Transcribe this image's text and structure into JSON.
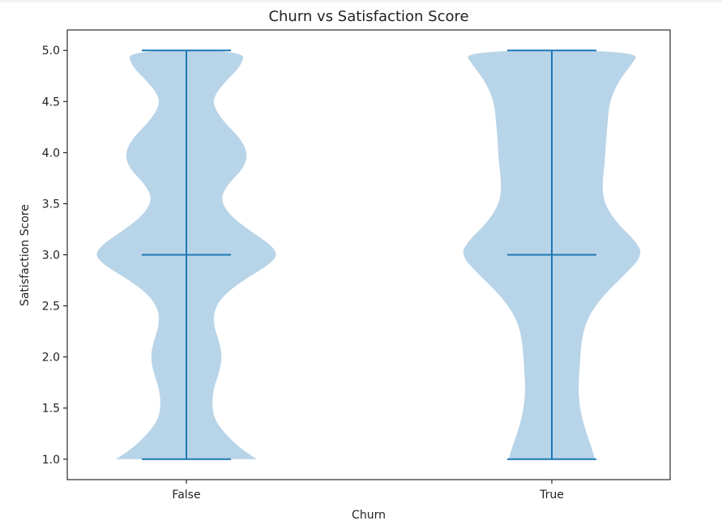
{
  "chart_data": {
    "type": "violin",
    "title": "Churn vs Satisfaction Score",
    "xlabel": "Churn",
    "ylabel": "Satisfaction Score",
    "categories": [
      "False",
      "True"
    ],
    "ylim": [
      0.8,
      5.2
    ],
    "yticks": [
      "1.0",
      "1.5",
      "2.0",
      "2.5",
      "3.0",
      "3.5",
      "4.0",
      "4.5",
      "5.0"
    ],
    "grid": false,
    "legend": "none",
    "colors": {
      "body": "#b8d4e8",
      "lines": "#1f77b4"
    },
    "series": [
      {
        "category": "False",
        "min": 1.0,
        "median": 3.0,
        "max": 5.0,
        "density": [
          [
            1.0,
            0.77
          ],
          [
            1.1,
            0.6
          ],
          [
            1.25,
            0.42
          ],
          [
            1.4,
            0.3
          ],
          [
            1.55,
            0.28
          ],
          [
            1.7,
            0.3
          ],
          [
            1.85,
            0.36
          ],
          [
            2.0,
            0.39
          ],
          [
            2.15,
            0.36
          ],
          [
            2.3,
            0.3
          ],
          [
            2.45,
            0.3
          ],
          [
            2.6,
            0.4
          ],
          [
            2.75,
            0.62
          ],
          [
            2.9,
            0.9
          ],
          [
            3.0,
            1.0
          ],
          [
            3.1,
            0.92
          ],
          [
            3.25,
            0.67
          ],
          [
            3.4,
            0.46
          ],
          [
            3.55,
            0.37
          ],
          [
            3.7,
            0.46
          ],
          [
            3.85,
            0.63
          ],
          [
            4.0,
            0.67
          ],
          [
            4.15,
            0.58
          ],
          [
            4.3,
            0.41
          ],
          [
            4.45,
            0.3
          ],
          [
            4.55,
            0.3
          ],
          [
            4.7,
            0.43
          ],
          [
            4.85,
            0.6
          ],
          [
            5.0,
            0.64
          ]
        ]
      },
      {
        "category": "True",
        "min": 1.0,
        "median": 3.0,
        "max": 5.0,
        "density": [
          [
            1.0,
            0.47
          ],
          [
            1.1,
            0.44
          ],
          [
            1.25,
            0.38
          ],
          [
            1.4,
            0.33
          ],
          [
            1.55,
            0.3
          ],
          [
            1.7,
            0.29
          ],
          [
            1.85,
            0.3
          ],
          [
            2.0,
            0.31
          ],
          [
            2.2,
            0.33
          ],
          [
            2.4,
            0.4
          ],
          [
            2.6,
            0.56
          ],
          [
            2.8,
            0.79
          ],
          [
            3.0,
            1.0
          ],
          [
            3.15,
            0.9
          ],
          [
            3.3,
            0.72
          ],
          [
            3.5,
            0.57
          ],
          [
            3.7,
            0.55
          ],
          [
            3.9,
            0.58
          ],
          [
            4.1,
            0.59
          ],
          [
            4.3,
            0.61
          ],
          [
            4.5,
            0.63
          ],
          [
            4.7,
            0.73
          ],
          [
            4.85,
            0.86
          ],
          [
            5.0,
            0.97
          ]
        ]
      }
    ]
  }
}
